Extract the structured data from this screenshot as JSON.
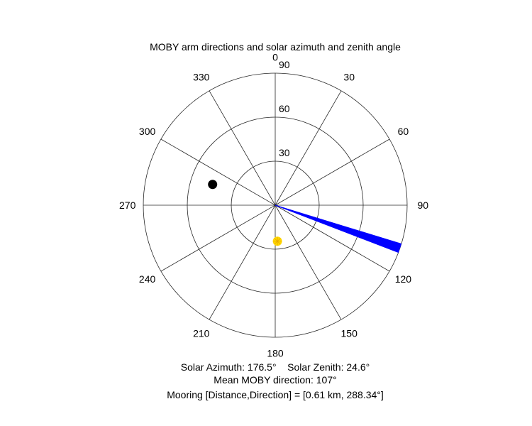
{
  "chart_data": {
    "type": "polar",
    "title": "MOBY arm directions and solar azimuth and zenith angle",
    "theta_ticks": [
      "0",
      "30",
      "60",
      "90",
      "120",
      "150",
      "180",
      "210",
      "240",
      "270",
      "300",
      "330"
    ],
    "r_ticks": [
      "30",
      "60",
      "90"
    ],
    "r_max": 90,
    "theta_direction": "clockwise",
    "theta_zero": "top",
    "arm_directions": {
      "color": "#0000ff",
      "theta_range_deg": [
        107,
        111
      ],
      "r": 90
    },
    "sun": {
      "azimuth_deg": 176.5,
      "zenith_deg": 24.6,
      "color": "#ffd700"
    },
    "mooring": {
      "direction_deg": 288.34,
      "r": 45,
      "color": "#000000"
    },
    "footer": {
      "solar_line": "Solar Azimuth: 176.5°    Solar Zenith: 24.6°",
      "moby_line": "Mean MOBY direction: 107°",
      "mooring_line": "Mooring [Distance,Direction] = [0.61 km, 288.34°]"
    }
  }
}
